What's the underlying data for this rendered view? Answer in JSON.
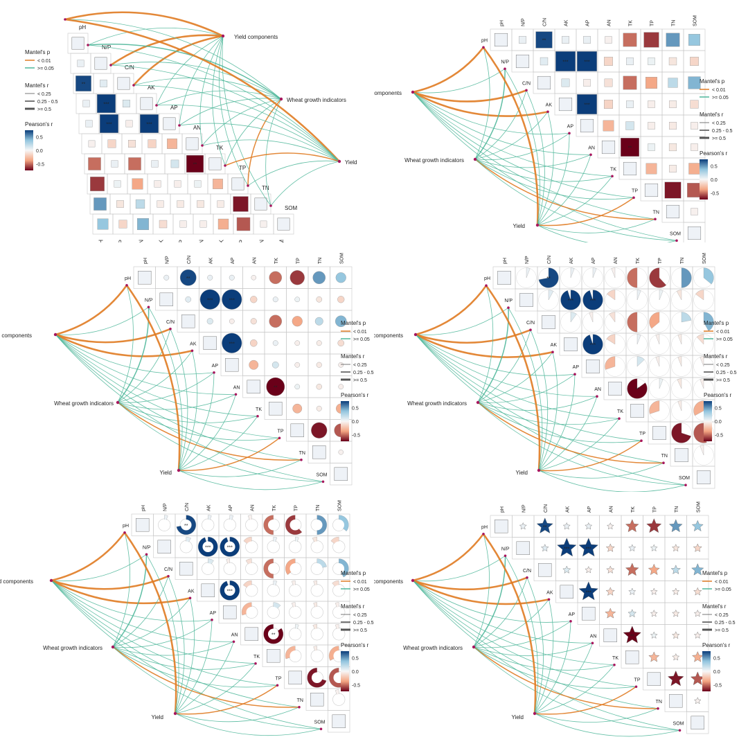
{
  "variables": [
    "pH",
    "N/P",
    "C/N",
    "AK",
    "AP",
    "AN",
    "TK",
    "TP",
    "TN",
    "SOM"
  ],
  "environment_groups": [
    "Yield components",
    "Wheat growth indicators",
    "Yield"
  ],
  "legend": {
    "mantel_p_title": "Mantel's p",
    "mantel_p_items": [
      "< 0.01",
      ">= 0.05"
    ],
    "mantel_r_title": "Mantel's r",
    "mantel_r_items": [
      "< 0.25",
      "0.25 - 0.5",
      ">= 0.5"
    ],
    "pearson_title": "Pearson's r",
    "pearson_ticks": [
      "0.5",
      "0.0",
      "-0.5"
    ],
    "pearson_range": [
      -0.75,
      0.75
    ]
  },
  "colors": {
    "p_lt_001": "#e07b22",
    "p_ge_005": "#4fb79a",
    "node": "#a8165e",
    "grid": "#c8c8c8",
    "scale_high": "#0b3d7a",
    "scale_mid": "#f7f7f7",
    "scale_low": "#6a0019"
  },
  "chart_data": [
    {
      "type": "heatmap",
      "shape": "square",
      "layout": "lower-triangle",
      "labels_left": true
    },
    {
      "type": "heatmap",
      "shape": "square",
      "layout": "upper-triangle"
    },
    {
      "type": "heatmap",
      "shape": "circle",
      "layout": "upper-triangle"
    },
    {
      "type": "heatmap",
      "shape": "pie",
      "layout": "upper-triangle"
    },
    {
      "type": "heatmap",
      "shape": "ring",
      "layout": "upper-triangle"
    },
    {
      "type": "heatmap",
      "shape": "star",
      "layout": "upper-triangle"
    }
  ],
  "correlations": [
    {
      "a": "pH",
      "b": "N/P",
      "r": 0.05
    },
    {
      "a": "pH",
      "b": "C/N",
      "r": 0.72,
      "sig": "**"
    },
    {
      "a": "pH",
      "b": "AK",
      "r": 0.05
    },
    {
      "a": "pH",
      "b": "AP",
      "r": 0.05
    },
    {
      "a": "pH",
      "b": "AN",
      "r": -0.03
    },
    {
      "a": "pH",
      "b": "TK",
      "r": -0.5
    },
    {
      "a": "pH",
      "b": "TP",
      "r": -0.62
    },
    {
      "a": "pH",
      "b": "TN",
      "r": 0.5
    },
    {
      "a": "pH",
      "b": "SOM",
      "r": 0.36
    },
    {
      "a": "N/P",
      "b": "C/N",
      "r": 0.08
    },
    {
      "a": "N/P",
      "b": "AK",
      "r": 0.95,
      "sig": "***"
    },
    {
      "a": "N/P",
      "b": "AP",
      "r": 0.95,
      "sig": "***"
    },
    {
      "a": "N/P",
      "b": "AN",
      "r": -0.15
    },
    {
      "a": "N/P",
      "b": "TK",
      "r": 0.05
    },
    {
      "a": "N/P",
      "b": "TP",
      "r": 0.04
    },
    {
      "a": "N/P",
      "b": "TN",
      "r": -0.08
    },
    {
      "a": "N/P",
      "b": "SOM",
      "r": -0.15
    },
    {
      "a": "C/N",
      "b": "AK",
      "r": 0.1
    },
    {
      "a": "C/N",
      "b": "AP",
      "r": -0.04
    },
    {
      "a": "C/N",
      "b": "AN",
      "r": -0.1
    },
    {
      "a": "C/N",
      "b": "TK",
      "r": -0.5
    },
    {
      "a": "C/N",
      "b": "TP",
      "r": -0.36
    },
    {
      "a": "C/N",
      "b": "TN",
      "r": 0.22
    },
    {
      "a": "C/N",
      "b": "SOM",
      "r": 0.42
    },
    {
      "a": "AK",
      "b": "AP",
      "r": 0.95,
      "sig": "***"
    },
    {
      "a": "AK",
      "b": "AN",
      "r": -0.16
    },
    {
      "a": "AK",
      "b": "TK",
      "r": 0.05
    },
    {
      "a": "AK",
      "b": "TP",
      "r": -0.04
    },
    {
      "a": "AK",
      "b": "TN",
      "r": -0.05
    },
    {
      "a": "AK",
      "b": "SOM",
      "r": -0.12
    },
    {
      "a": "AP",
      "b": "AN",
      "r": -0.3
    },
    {
      "a": "AP",
      "b": "TK",
      "r": 0.13
    },
    {
      "a": "AP",
      "b": "TP",
      "r": -0.04
    },
    {
      "a": "AP",
      "b": "TN",
      "r": -0.06
    },
    {
      "a": "AP",
      "b": "SOM",
      "r": -0.04
    },
    {
      "a": "AN",
      "b": "TK",
      "r": -0.85,
      "sig": "**"
    },
    {
      "a": "AN",
      "b": "TP",
      "r": 0.04
    },
    {
      "a": "AN",
      "b": "TN",
      "r": -0.07
    },
    {
      "a": "AN",
      "b": "SOM",
      "r": -0.04
    },
    {
      "a": "TK",
      "b": "TP",
      "r": -0.3
    },
    {
      "a": "TK",
      "b": "TN",
      "r": -0.05
    },
    {
      "a": "TK",
      "b": "SOM",
      "r": -0.33
    },
    {
      "a": "TP",
      "b": "TN",
      "r": -0.7
    },
    {
      "a": "TP",
      "b": "SOM",
      "r": -0.55
    },
    {
      "a": "TN",
      "b": "SOM",
      "r": -0.03
    }
  ],
  "mantel_links": [
    {
      "env": "Yield components",
      "var": "pH",
      "p": "<0.01",
      "r": ">=0.5"
    },
    {
      "env": "Yield components",
      "var": "N/P",
      "p": ">=0.05",
      "r": "<0.25"
    },
    {
      "env": "Yield components",
      "var": "C/N",
      "p": "<0.01",
      "r": ">=0.5"
    },
    {
      "env": "Yield components",
      "var": "AK",
      "p": "<0.01",
      "r": ">=0.5"
    },
    {
      "env": "Yield components",
      "var": "AP",
      "p": ">=0.05",
      "r": "<0.25"
    },
    {
      "env": "Yield components",
      "var": "AN",
      "p": ">=0.05",
      "r": "<0.25"
    },
    {
      "env": "Yield components",
      "var": "TK",
      "p": ">=0.05",
      "r": "<0.25"
    },
    {
      "env": "Yield components",
      "var": "TP",
      "p": ">=0.05",
      "r": "<0.25"
    },
    {
      "env": "Yield components",
      "var": "TN",
      "p": ">=0.05",
      "r": "<0.25"
    },
    {
      "env": "Yield components",
      "var": "SOM",
      "p": ">=0.05",
      "r": "<0.25"
    },
    {
      "env": "Wheat growth indicators",
      "var": "pH",
      "p": ">=0.05",
      "r": "<0.25"
    },
    {
      "env": "Wheat growth indicators",
      "var": "N/P",
      "p": ">=0.05",
      "r": "0.25-0.5"
    },
    {
      "env": "Wheat growth indicators",
      "var": "C/N",
      "p": ">=0.05",
      "r": "<0.25"
    },
    {
      "env": "Wheat growth indicators",
      "var": "AK",
      "p": ">=0.05",
      "r": "<0.25"
    },
    {
      "env": "Wheat growth indicators",
      "var": "AP",
      "p": ">=0.05",
      "r": "<0.25"
    },
    {
      "env": "Wheat growth indicators",
      "var": "AN",
      "p": ">=0.05",
      "r": "<0.25"
    },
    {
      "env": "Wheat growth indicators",
      "var": "TK",
      "p": ">=0.05",
      "r": "<0.25"
    },
    {
      "env": "Wheat growth indicators",
      "var": "TP",
      "p": ">=0.05",
      "r": "<0.25"
    },
    {
      "env": "Wheat growth indicators",
      "var": "TN",
      "p": "<0.01",
      "r": "0.25-0.5"
    },
    {
      "env": "Wheat growth indicators",
      "var": "SOM",
      "p": ">=0.05",
      "r": "<0.25"
    },
    {
      "env": "Yield",
      "var": "pH",
      "p": "<0.01",
      "r": ">=0.5"
    },
    {
      "env": "Yield",
      "var": "N/P",
      "p": ">=0.05",
      "r": "<0.25"
    },
    {
      "env": "Yield",
      "var": "C/N",
      "p": ">=0.05",
      "r": "<0.25"
    },
    {
      "env": "Yield",
      "var": "AK",
      "p": ">=0.05",
      "r": "<0.25"
    },
    {
      "env": "Yield",
      "var": "AP",
      "p": ">=0.05",
      "r": "<0.25"
    },
    {
      "env": "Yield",
      "var": "AN",
      "p": ">=0.05",
      "r": "<0.25"
    },
    {
      "env": "Yield",
      "var": "TK",
      "p": ">=0.05",
      "r": "<0.25"
    },
    {
      "env": "Yield",
      "var": "TP",
      "p": "<0.01",
      "r": "0.25-0.5"
    },
    {
      "env": "Yield",
      "var": "TN",
      "p": ">=0.05",
      "r": "<0.25"
    },
    {
      "env": "Yield",
      "var": "SOM",
      "p": ">=0.05",
      "r": "<0.25"
    }
  ]
}
